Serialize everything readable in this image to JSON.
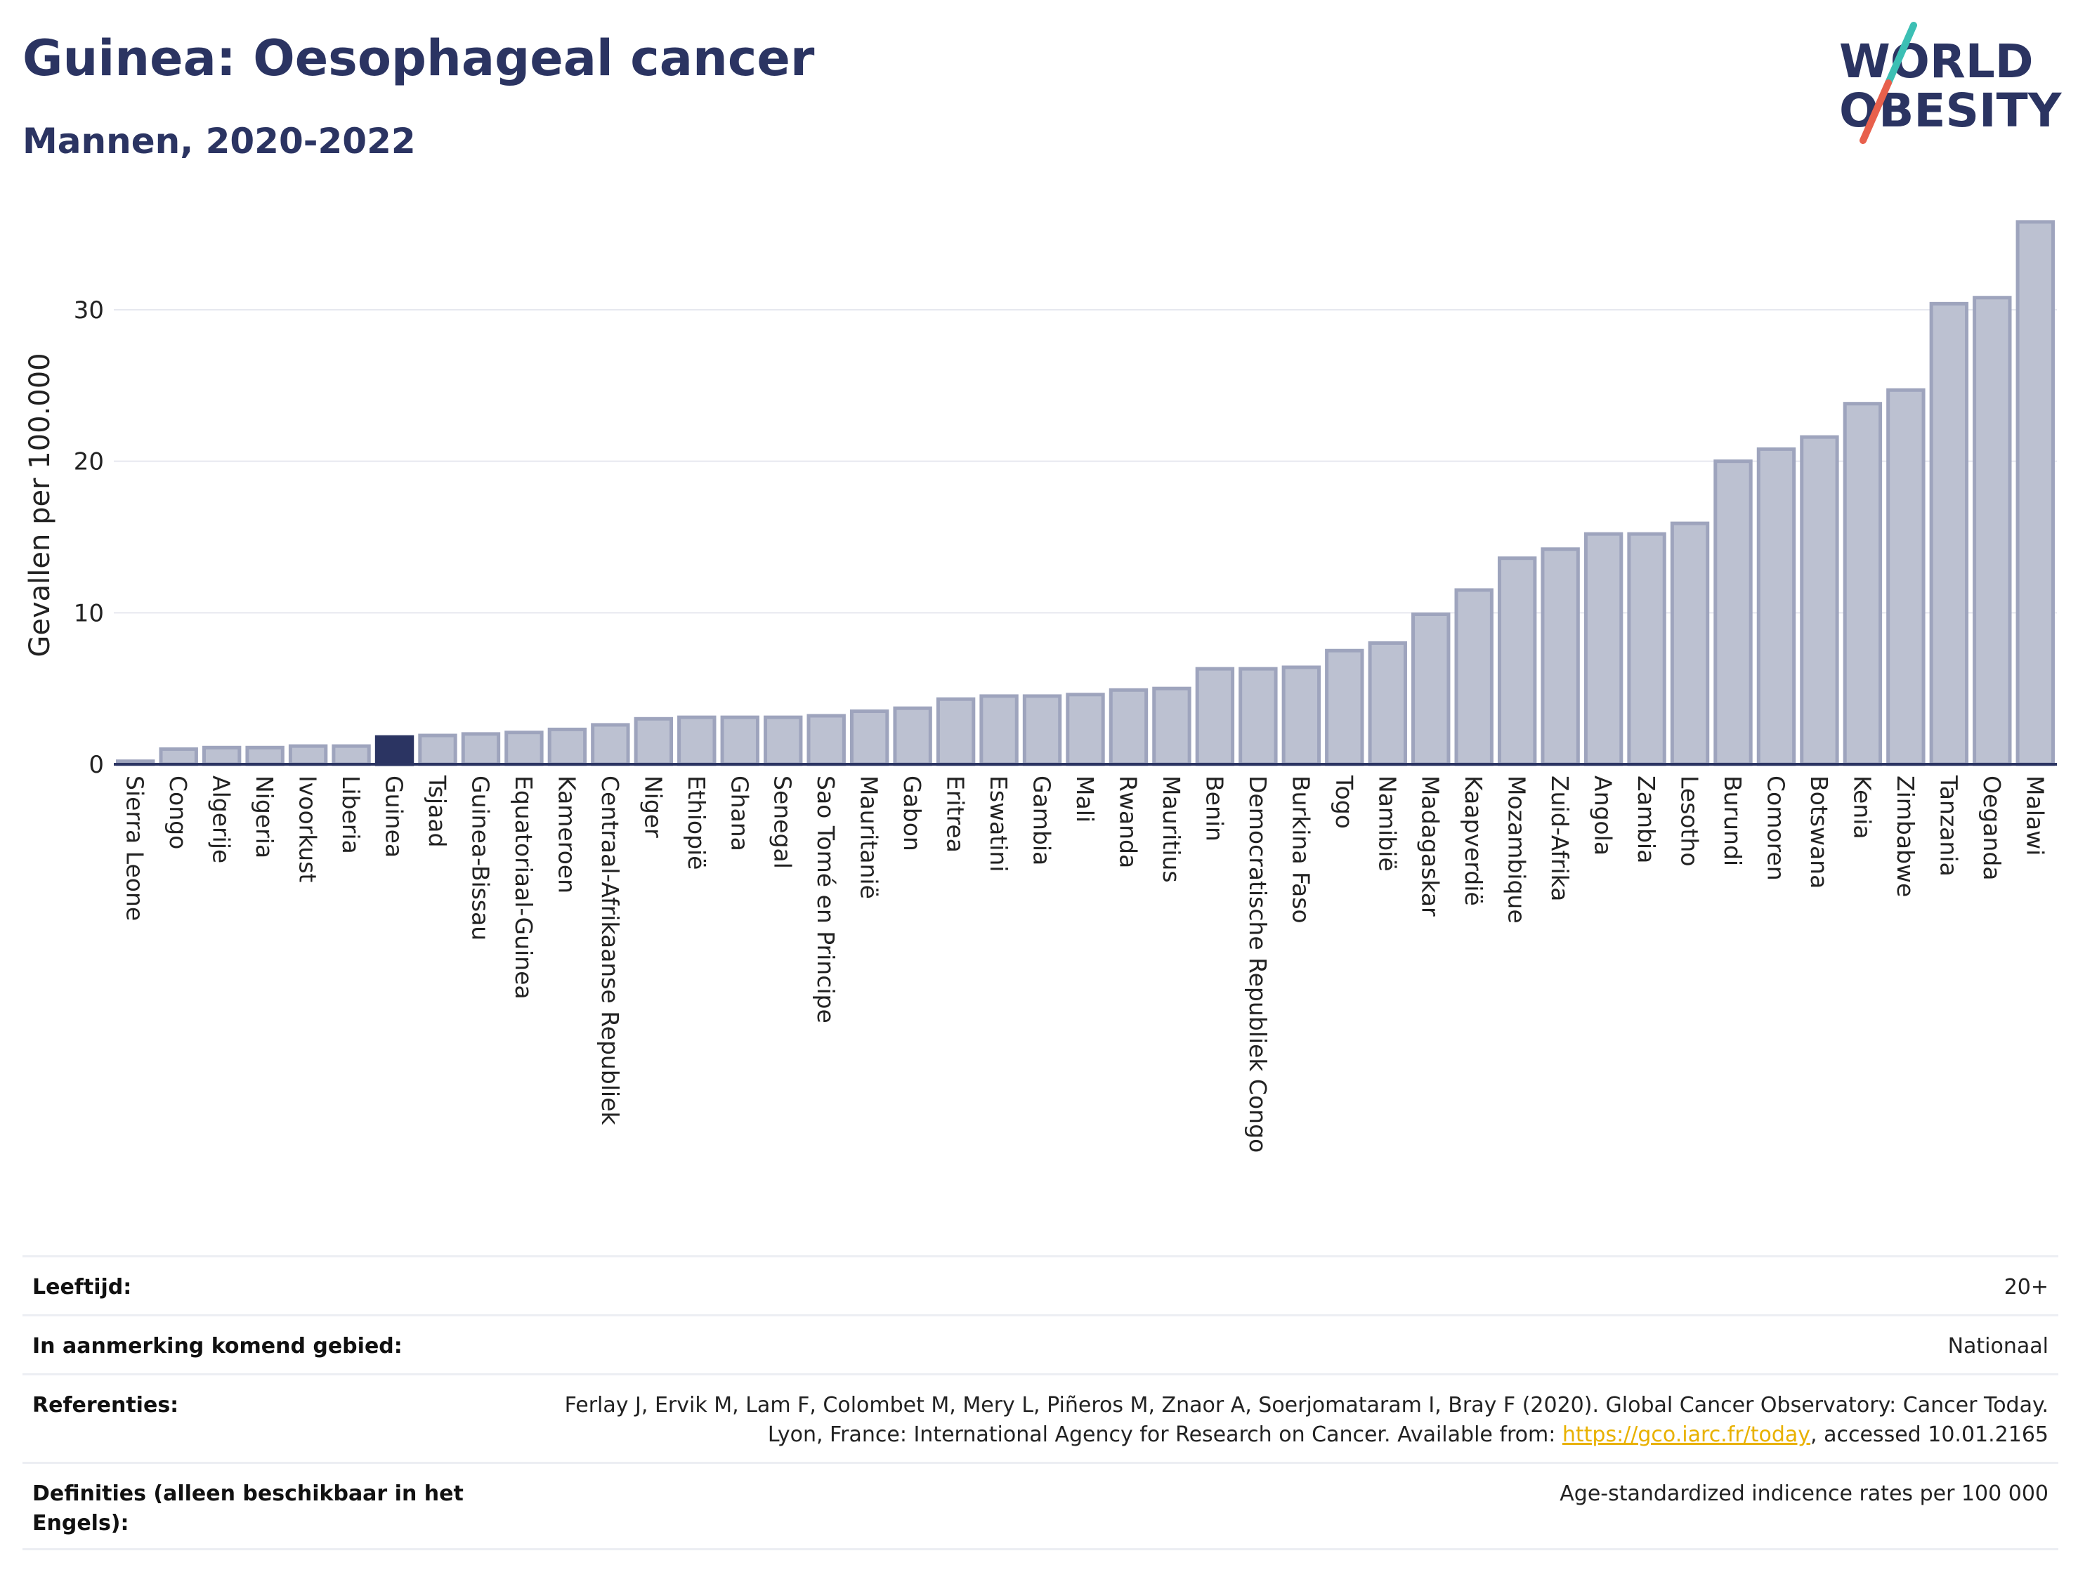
{
  "header": {
    "title": "Guinea: Oesophageal cancer",
    "subtitle": "Mannen, 2020-2022"
  },
  "logo": {
    "line1": "WORLD",
    "line2": "OBESITY",
    "accent_teal": "#3cbfb4",
    "accent_red": "#e8604c",
    "text_color": "#2b3462"
  },
  "colors": {
    "bar": "#bcc1d1",
    "bar_stroke": "#9ea4bd",
    "highlight": "#2b3462",
    "grid": "#e6e8ef",
    "axis": "#2b3462"
  },
  "chart_data": {
    "type": "bar",
    "title": "Guinea: Oesophageal cancer",
    "subtitle": "Mannen, 2020-2022",
    "xlabel": "",
    "ylabel": "Gevallen per 100.000",
    "ylim": [
      0,
      37
    ],
    "yticks": [
      0,
      10,
      20,
      30
    ],
    "grid": true,
    "highlight_category": "Guinea",
    "categories": [
      "Sierra Leone",
      "Congo",
      "Algerije",
      "Nigeria",
      "Ivoorkust",
      "Liberia",
      "Guinea",
      "Tsjaad",
      "Guinea-Bissau",
      "Equatoriaal-Guinea",
      "Kameroen",
      "Centraal-Afrikaanse Republiek",
      "Niger",
      "Ethiopië",
      "Ghana",
      "Senegal",
      "Sao Tomé en Principe",
      "Mauritanië",
      "Gabon",
      "Eritrea",
      "Eswatini",
      "Gambia",
      "Mali",
      "Rwanda",
      "Mauritius",
      "Benin",
      "Democratische Republiek Congo",
      "Burkina Faso",
      "Togo",
      "Namibië",
      "Madagaskar",
      "Kaapverdië",
      "Mozambique",
      "Zuid-Afrika",
      "Angola",
      "Zambia",
      "Lesotho",
      "Burundi",
      "Comoren",
      "Botswana",
      "Kenia",
      "Zimbabwe",
      "Tanzania",
      "Oeganda",
      "Malawi"
    ],
    "values": [
      0.2,
      1.0,
      1.1,
      1.1,
      1.2,
      1.2,
      1.8,
      1.9,
      2.0,
      2.1,
      2.3,
      2.6,
      3.0,
      3.1,
      3.1,
      3.1,
      3.2,
      3.5,
      3.7,
      4.3,
      4.5,
      4.5,
      4.6,
      4.9,
      5.0,
      6.3,
      6.3,
      6.4,
      7.5,
      8.0,
      9.9,
      11.5,
      13.6,
      14.2,
      15.2,
      15.2,
      15.9,
      20.0,
      20.8,
      21.6,
      23.8,
      24.7,
      30.4,
      30.8,
      35.8
    ]
  },
  "info": {
    "rows": [
      {
        "label": "Leeftijd:",
        "value": "20+"
      },
      {
        "label": "In aanmerking komend gebied:",
        "value": "Nationaal"
      },
      {
        "label": "Referenties:",
        "value_before": "Ferlay J, Ervik M, Lam F, Colombet M, Mery L, Piñeros M, Znaor A, Soerjomataram I, Bray F (2020). Global Cancer Observatory: Cancer Today. Lyon, France: International Agency for Research on Cancer. Available from: ",
        "link": "https://gco.iarc.fr/today",
        "value_after": ", accessed 10.01.2165"
      },
      {
        "label": "Definities (alleen beschikbaar in het Engels):",
        "value": "Age-standardized indicence rates per 100 000"
      }
    ]
  }
}
